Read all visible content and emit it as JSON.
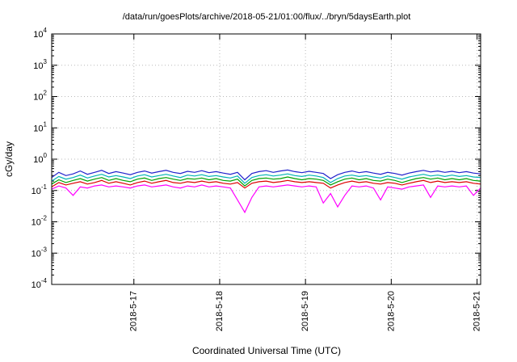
{
  "chart_data": {
    "type": "line",
    "title": "/data/run/goesPlots/archive/2018-05-21/01:00/flux/../bryn/5daysEarth.plot",
    "xlabel": "Coordinated Universal Time (UTC)",
    "ylabel": "cGy/day",
    "grid": true,
    "legend": "none",
    "y_scale": "log10",
    "y_domain_log10": [
      -4,
      4
    ],
    "x_domain": [
      16.042,
      21.042
    ],
    "y_tick_exponents": [
      4,
      3,
      2,
      1,
      0,
      -1,
      -2,
      -3,
      -4
    ],
    "x_ticks": [
      {
        "pos": 17,
        "label": "2018-5-17"
      },
      {
        "pos": 18,
        "label": "2018-5-18"
      },
      {
        "pos": 19,
        "label": "2018-5-19"
      },
      {
        "pos": 20,
        "label": "2018-5-20"
      },
      {
        "pos": 21,
        "label": "2018-5-21"
      }
    ],
    "colors": {
      "grid": "#b8b8b8",
      "axis": "#000000",
      "background": "#ffffff"
    },
    "x": [
      16.042,
      16.125,
      16.208,
      16.292,
      16.375,
      16.458,
      16.542,
      16.625,
      16.708,
      16.792,
      16.875,
      16.958,
      17.042,
      17.125,
      17.208,
      17.292,
      17.375,
      17.458,
      17.542,
      17.625,
      17.708,
      17.792,
      17.875,
      17.958,
      18.042,
      18.125,
      18.208,
      18.292,
      18.375,
      18.458,
      18.542,
      18.625,
      18.708,
      18.792,
      18.875,
      18.958,
      19.042,
      19.125,
      19.208,
      19.292,
      19.375,
      19.458,
      19.542,
      19.625,
      19.708,
      19.792,
      19.875,
      19.958,
      20.042,
      20.125,
      20.208,
      20.292,
      20.375,
      20.458,
      20.542,
      20.625,
      20.708,
      20.792,
      20.875,
      20.958,
      21.042
    ],
    "series": [
      {
        "name": "flux-blue",
        "color": "#2222cc",
        "values": [
          0.26,
          0.38,
          0.3,
          0.34,
          0.42,
          0.33,
          0.38,
          0.44,
          0.35,
          0.4,
          0.36,
          0.32,
          0.38,
          0.42,
          0.36,
          0.4,
          0.44,
          0.38,
          0.35,
          0.41,
          0.38,
          0.43,
          0.37,
          0.4,
          0.36,
          0.33,
          0.38,
          0.22,
          0.35,
          0.4,
          0.43,
          0.38,
          0.42,
          0.45,
          0.4,
          0.37,
          0.41,
          0.38,
          0.35,
          0.24,
          0.32,
          0.38,
          0.42,
          0.37,
          0.4,
          0.36,
          0.33,
          0.38,
          0.35,
          0.31,
          0.36,
          0.4,
          0.44,
          0.39,
          0.42,
          0.38,
          0.41,
          0.37,
          0.4,
          0.36,
          0.34
        ]
      },
      {
        "name": "flux-cyan",
        "color": "#00b4b4",
        "values": [
          0.2,
          0.28,
          0.23,
          0.26,
          0.31,
          0.25,
          0.29,
          0.33,
          0.27,
          0.3,
          0.27,
          0.24,
          0.29,
          0.32,
          0.27,
          0.3,
          0.33,
          0.29,
          0.26,
          0.31,
          0.29,
          0.32,
          0.28,
          0.3,
          0.27,
          0.25,
          0.29,
          0.17,
          0.26,
          0.3,
          0.32,
          0.29,
          0.31,
          0.34,
          0.3,
          0.28,
          0.31,
          0.29,
          0.26,
          0.18,
          0.24,
          0.29,
          0.31,
          0.28,
          0.3,
          0.27,
          0.25,
          0.29,
          0.26,
          0.23,
          0.27,
          0.3,
          0.33,
          0.29,
          0.31,
          0.28,
          0.31,
          0.28,
          0.3,
          0.27,
          0.26
        ]
      },
      {
        "name": "flux-green",
        "color": "#00a000",
        "values": [
          0.16,
          0.22,
          0.18,
          0.21,
          0.24,
          0.2,
          0.23,
          0.26,
          0.21,
          0.24,
          0.21,
          0.19,
          0.23,
          0.25,
          0.21,
          0.24,
          0.26,
          0.23,
          0.21,
          0.24,
          0.23,
          0.25,
          0.22,
          0.24,
          0.21,
          0.2,
          0.23,
          0.14,
          0.21,
          0.24,
          0.25,
          0.23,
          0.24,
          0.27,
          0.24,
          0.22,
          0.24,
          0.23,
          0.21,
          0.15,
          0.19,
          0.23,
          0.25,
          0.22,
          0.24,
          0.21,
          0.2,
          0.23,
          0.21,
          0.18,
          0.21,
          0.24,
          0.26,
          0.23,
          0.25,
          0.22,
          0.24,
          0.22,
          0.24,
          0.21,
          0.2
        ]
      },
      {
        "name": "flux-red",
        "color": "#dd0000",
        "values": [
          0.13,
          0.18,
          0.15,
          0.17,
          0.19,
          0.16,
          0.18,
          0.21,
          0.17,
          0.19,
          0.17,
          0.15,
          0.18,
          0.2,
          0.17,
          0.19,
          0.21,
          0.18,
          0.17,
          0.19,
          0.18,
          0.2,
          0.18,
          0.19,
          0.17,
          0.16,
          0.18,
          0.12,
          0.17,
          0.19,
          0.2,
          0.18,
          0.19,
          0.21,
          0.19,
          0.18,
          0.19,
          0.18,
          0.17,
          0.12,
          0.15,
          0.18,
          0.2,
          0.18,
          0.19,
          0.17,
          0.16,
          0.18,
          0.17,
          0.15,
          0.17,
          0.19,
          0.21,
          0.18,
          0.2,
          0.18,
          0.19,
          0.18,
          0.19,
          0.17,
          0.16
        ]
      },
      {
        "name": "flux-magenta",
        "color": "#ff00ff",
        "values": [
          0.11,
          0.14,
          0.12,
          0.07,
          0.13,
          0.12,
          0.14,
          0.15,
          0.13,
          0.14,
          0.13,
          0.12,
          0.14,
          0.15,
          0.13,
          0.14,
          0.15,
          0.13,
          0.12,
          0.14,
          0.13,
          0.15,
          0.13,
          0.14,
          0.13,
          0.12,
          0.05,
          0.02,
          0.06,
          0.13,
          0.14,
          0.13,
          0.14,
          0.15,
          0.14,
          0.13,
          0.14,
          0.13,
          0.04,
          0.08,
          0.03,
          0.07,
          0.14,
          0.13,
          0.14,
          0.12,
          0.05,
          0.13,
          0.12,
          0.11,
          0.13,
          0.14,
          0.15,
          0.06,
          0.14,
          0.13,
          0.14,
          0.13,
          0.14,
          0.07,
          0.12
        ]
      }
    ]
  }
}
